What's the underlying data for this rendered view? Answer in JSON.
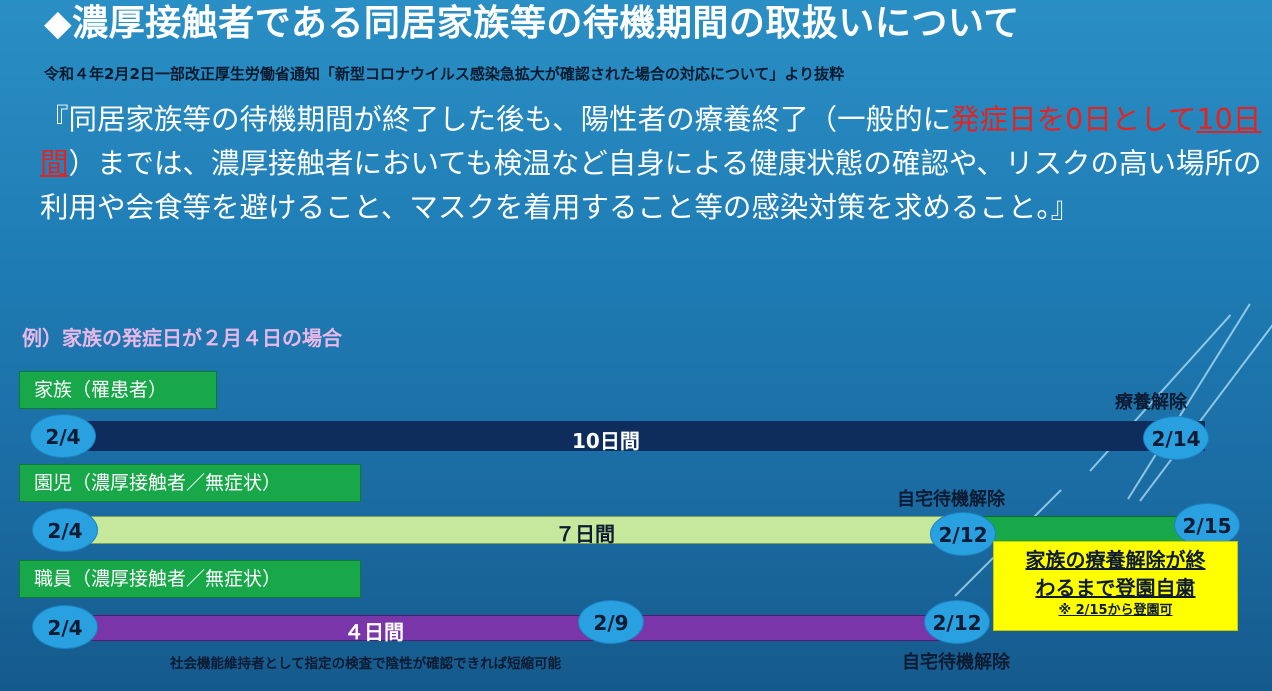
{
  "header": {
    "title": "◆濃厚接触者である同居家族等の待機期間の取扱いについて",
    "subtitle": "令和４年2月2日一部改正厚生労働省通知「新型コロナウイルス感染急拡大が確認された場合の対応について」より抜粋"
  },
  "quote": {
    "part1": "『同居家族等の待機期間が終了した後も、陽性者の療養終了（一般的に",
    "highlight1": "発症日を0日として",
    "highlight2": "10日間",
    "part2": "）までは、濃厚接触者においても検温など自身による健康状態の確認や、リスクの高い場所の利用や会食等を避けること、マスクを着用すること等の感染対策を求めること。』"
  },
  "example": {
    "heading": "例）家族の発症日が２月４日の場合"
  },
  "rows": {
    "family": {
      "label": "家族（罹患者）",
      "start": "2/4",
      "end": "2/14",
      "duration": "10日間",
      "end_callout": "療養解除"
    },
    "child": {
      "label": "園児（濃厚接触者／無症状）",
      "start": "2/4",
      "mid": "2/12",
      "end": "2/15",
      "duration": "７日間",
      "mid_callout": "自宅待機解除",
      "box_line1": "家族の療養解除が終",
      "box_line2": "わるまで登園自粛",
      "box_note": "※ 2/15から登園可"
    },
    "staff": {
      "label": "職員（濃厚接触者／無症状）",
      "start": "2/4",
      "mid": "2/9",
      "end": "2/12",
      "duration": "４日間",
      "end_callout": "自宅待機解除",
      "note": "社会機能維持者として指定の検査で陰性が確認できれば短縮可能"
    }
  },
  "colors": {
    "family_bar": "#0f2d5c",
    "child_bar": "#c6e89c",
    "child_extension": "#18a84a",
    "staff_bar": "#7a35a8",
    "label_green": "#18a84a",
    "date_oval": "#29a0e0",
    "highlight_red": "#e52222",
    "box_yellow": "#ffff00"
  }
}
